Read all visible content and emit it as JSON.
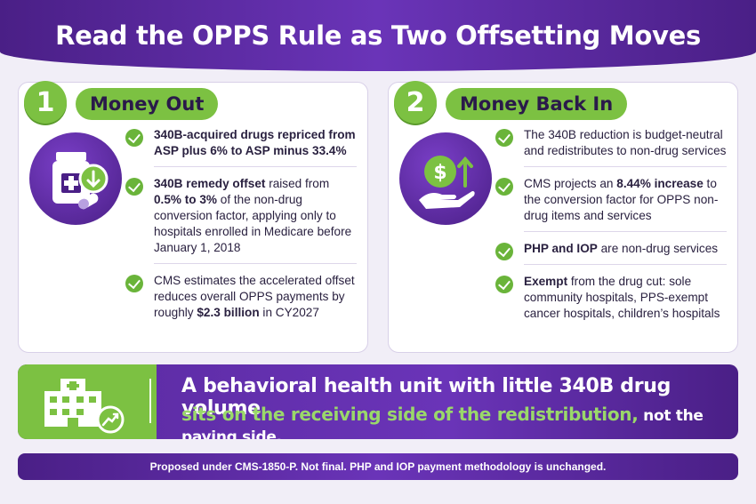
{
  "title": "Read the OPPS Rule as Two Offsetting Moves",
  "left": {
    "number": "1",
    "heading": "Money Out",
    "icon": "medicine-bottle-icon",
    "items": [
      {
        "bold": "340B-acquired drugs repriced from ASP plus 6% to ASP minus 33.4%"
      },
      {
        "bold_start": "340B remedy offset",
        "text_a": " raised from ",
        "bold_mid": "0.5% to 3%",
        "text_b": " of the non-drug conversion factor, applying only to hospitals enrolled in Medicare before January 1, 2018"
      },
      {
        "text_a": "CMS estimates the accelerated offset reduces overall OPPS payments by roughly ",
        "bold_mid": "$2.3 billion",
        "text_b": " in CY2027"
      }
    ]
  },
  "right": {
    "number": "2",
    "heading": "Money Back In",
    "icon": "dollar-hand-icon",
    "items": [
      {
        "text_a": "The 340B reduction is budget-neutral and redistributes to non-drug services"
      },
      {
        "text_a": "CMS projects an ",
        "bold_mid": "8.44% increase",
        "text_b": " to the conversion factor for OPPS non-drug items and services"
      },
      {
        "bold_start": "PHP and IOP",
        "text_a": " are non-drug services"
      },
      {
        "bold_start": "Exempt",
        "text_a": " from the drug cut: sole community hospitals, PPS-exempt cancer hospitals, children’s hospitals"
      }
    ]
  },
  "banner": {
    "icon": "hospital-growth-icon",
    "line1": "A behavioral health unit with little 340B drug volume",
    "line2_green": "sits on the receiving side of the redistribution,",
    "line2_white": " not the paying side."
  },
  "footer": "Proposed under CMS-1850-P. Not final. PHP and IOP payment methodology is unchanged.",
  "colors": {
    "purple": "#4a1f86",
    "green": "#7cc142"
  }
}
